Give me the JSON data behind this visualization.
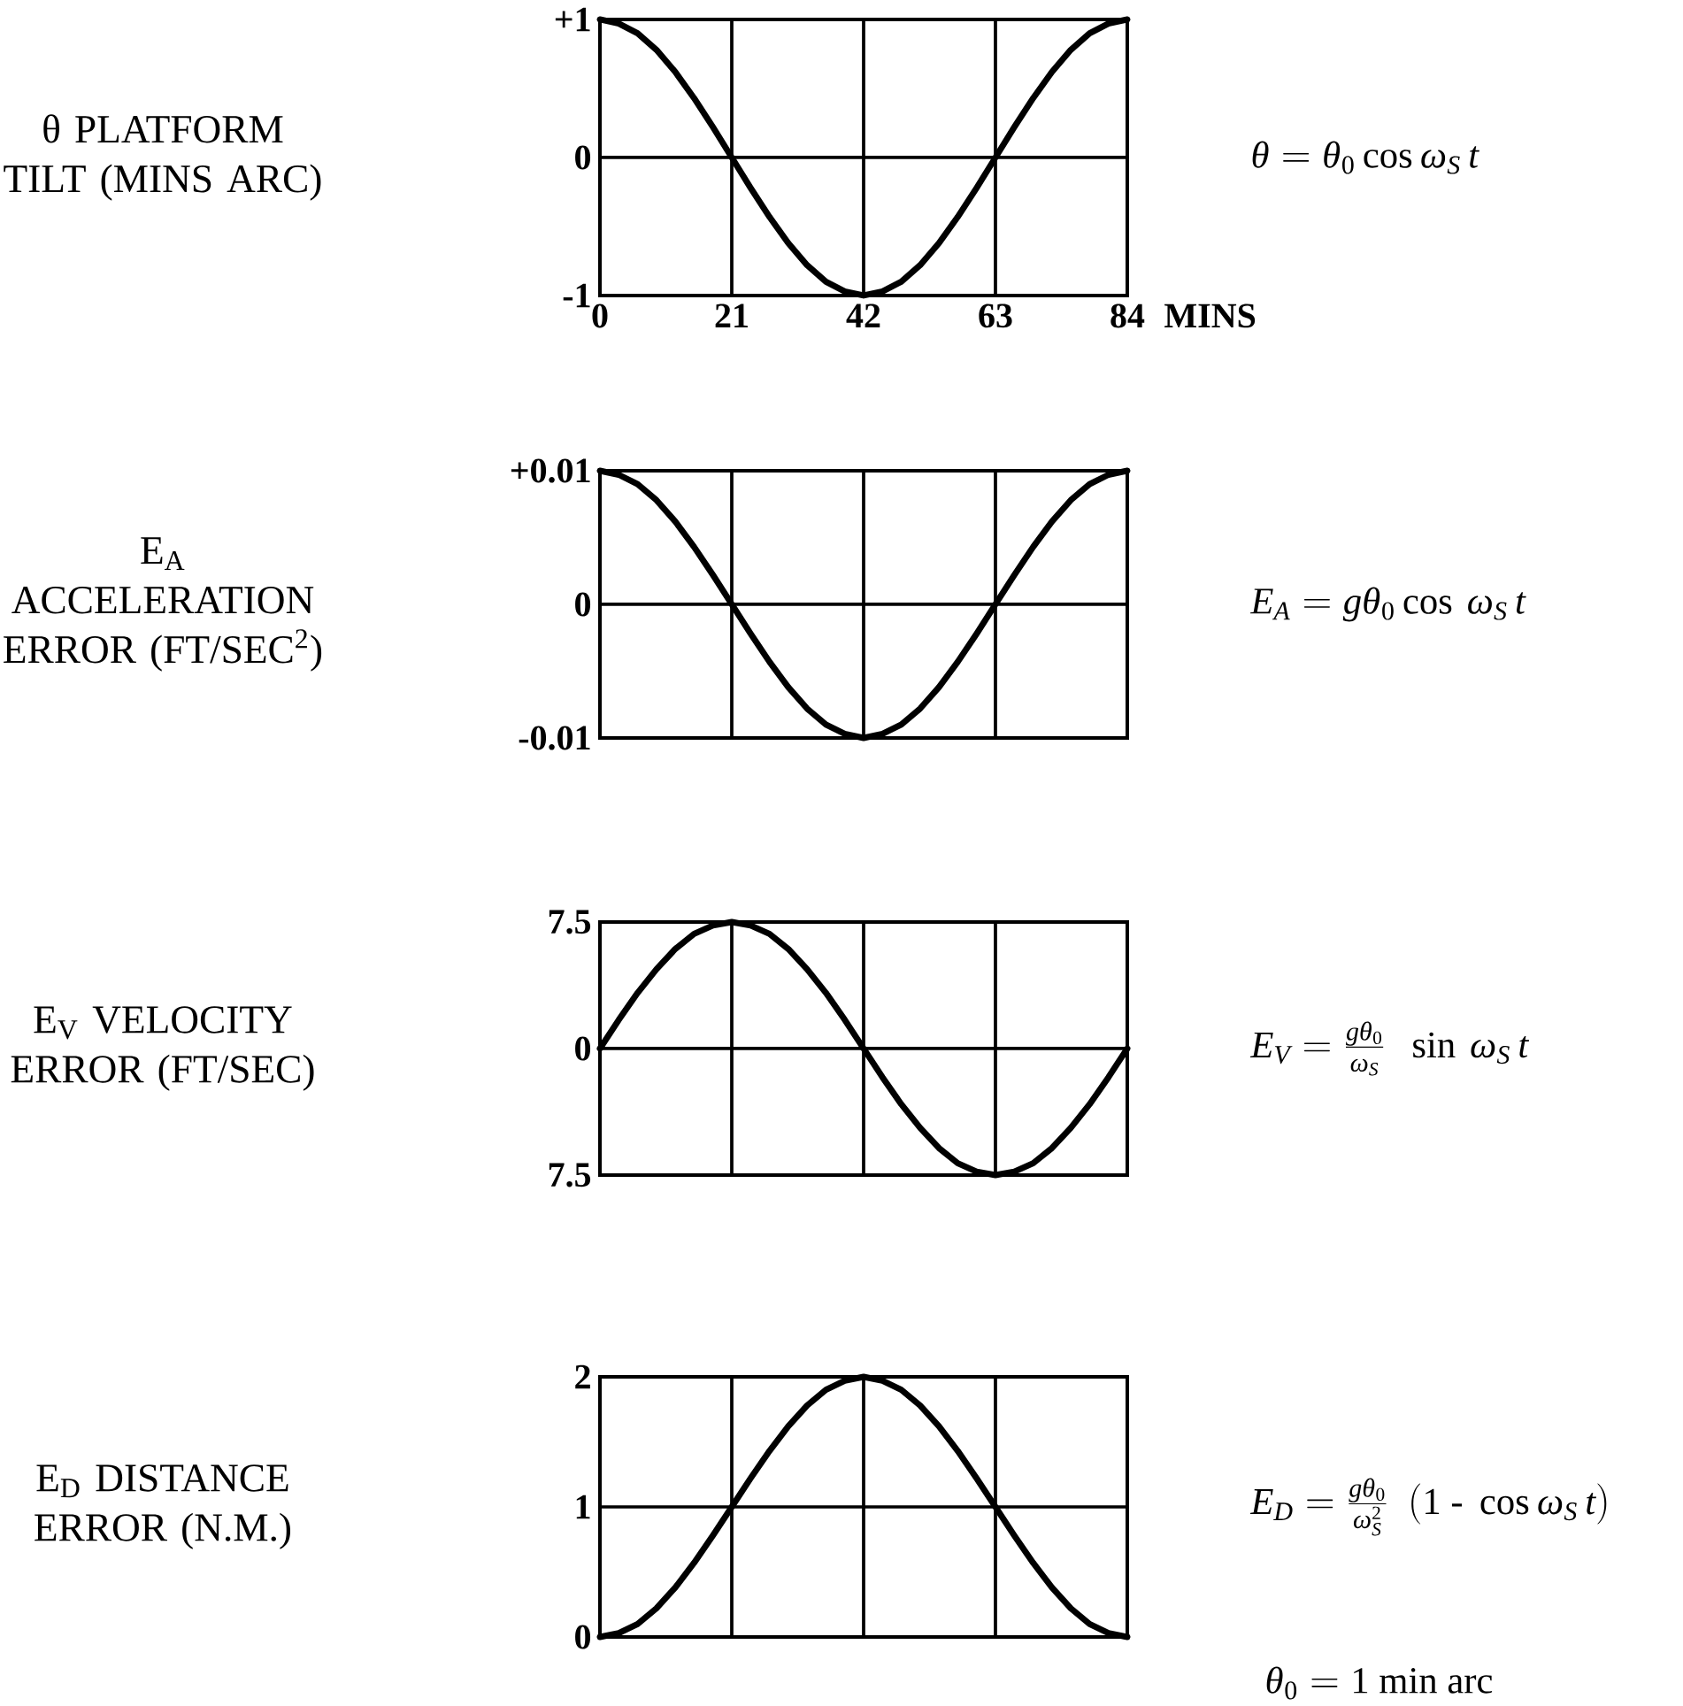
{
  "chart_data": [
    {
      "type": "line",
      "ylabel": "θ PLATFORM TILT (MINS ARC)",
      "xlabel": "MINS",
      "color": "#000000",
      "x": [
        0,
        3,
        6,
        9,
        12,
        15,
        18,
        21,
        24,
        27,
        30,
        33,
        36,
        39,
        42,
        45,
        48,
        51,
        54,
        57,
        60,
        63,
        66,
        69,
        72,
        75,
        78,
        81,
        84
      ],
      "values": [
        1,
        0.97,
        0.9,
        0.78,
        0.62,
        0.43,
        0.22,
        0,
        -0.22,
        -0.43,
        -0.62,
        -0.78,
        -0.9,
        -0.97,
        -1,
        -0.97,
        -0.9,
        -0.78,
        -0.62,
        -0.43,
        -0.22,
        0,
        0.22,
        0.43,
        0.62,
        0.78,
        0.9,
        0.97,
        1
      ],
      "xlim": [
        0,
        84
      ],
      "xticks": [
        0,
        21,
        42,
        63,
        84
      ],
      "ylim": [
        -1,
        1
      ],
      "yticks": [
        -1,
        0,
        {
          "value": 1,
          "label": "+1"
        }
      ],
      "grid": true,
      "annotations": [
        "\\theta = \\theta_{0} \\cos \\omega_{S}\\, t"
      ]
    },
    {
      "type": "line",
      "ylabel": "E$_{A}$ ACCELERATION ERROR (FT/SEC$^{2}$)",
      "color": "#000000",
      "x": [
        0,
        3,
        6,
        9,
        12,
        15,
        18,
        21,
        24,
        27,
        30,
        33,
        36,
        39,
        42,
        45,
        48,
        51,
        54,
        57,
        60,
        63,
        66,
        69,
        72,
        75,
        78,
        81,
        84
      ],
      "values": [
        0.01,
        0.0097,
        0.009,
        0.0078,
        0.0062,
        0.0043,
        0.0022,
        0,
        -0.0022,
        -0.0043,
        -0.0062,
        -0.0078,
        -0.009,
        -0.0097,
        -0.01,
        -0.0097,
        -0.009,
        -0.0078,
        -0.0062,
        -0.0043,
        -0.0022,
        0,
        0.0022,
        0.0043,
        0.0062,
        0.0078,
        0.009,
        0.0097,
        0.01
      ],
      "xlim": [
        0,
        84
      ],
      "xticks": [
        0,
        21,
        42,
        63,
        84
      ],
      "ylim": [
        -0.01,
        0.01
      ],
      "yticks": [
        -0.01,
        0,
        {
          "value": 0.01,
          "label": "+0.01"
        }
      ],
      "grid": true,
      "tick_labels": "y",
      "annotations": [
        "E_{A} = g\\theta_{0} \\cos\\, \\omega_{S}\\, t"
      ]
    },
    {
      "type": "line",
      "ylabel": "E$_{V}$ VELOCITY ERROR (FT/SEC)",
      "color": "#000000",
      "x": [
        0,
        3,
        6,
        9,
        12,
        15,
        18,
        21,
        24,
        27,
        30,
        33,
        36,
        39,
        42,
        45,
        48,
        51,
        54,
        57,
        60,
        63,
        66,
        69,
        72,
        75,
        78,
        81,
        84
      ],
      "values": [
        0,
        1.7,
        3.3,
        4.7,
        5.9,
        6.8,
        7.3,
        7.5,
        7.3,
        6.8,
        5.9,
        4.7,
        3.3,
        1.7,
        0,
        -1.7,
        -3.3,
        -4.7,
        -5.9,
        -6.8,
        -7.3,
        -7.5,
        -7.3,
        -6.8,
        -5.9,
        -4.7,
        -3.3,
        -1.7,
        0
      ],
      "xlim": [
        0,
        84
      ],
      "xticks": [
        0,
        21,
        42,
        63,
        84
      ],
      "ylim": [
        -7.5,
        7.5
      ],
      "yticks": [
        {
          "value": -7.5,
          "label": "7.5"
        },
        0,
        7.5
      ],
      "grid": true,
      "tick_labels": "y",
      "annotations": [
        "E_{V} = \\frac{g\\theta_{0}}{\\omega_{S}}\\ \\ \\sin\\, \\omega_{S}\\, t"
      ]
    },
    {
      "type": "line",
      "ylabel": "E$_{D}$ DISTANCE ERROR (N.M.)",
      "color": "#000000",
      "x": [
        0,
        3,
        6,
        9,
        12,
        15,
        18,
        21,
        24,
        27,
        30,
        33,
        36,
        39,
        42,
        45,
        48,
        51,
        54,
        57,
        60,
        63,
        66,
        69,
        72,
        75,
        78,
        81,
        84
      ],
      "values": [
        0,
        0.03,
        0.1,
        0.22,
        0.38,
        0.57,
        0.78,
        1,
        1.22,
        1.43,
        1.62,
        1.78,
        1.9,
        1.97,
        2,
        1.97,
        1.9,
        1.78,
        1.62,
        1.43,
        1.22,
        1,
        0.78,
        0.57,
        0.38,
        0.22,
        0.1,
        0.03,
        0
      ],
      "xlim": [
        0,
        84
      ],
      "xticks": [
        0,
        21,
        42,
        63,
        84
      ],
      "ylim": [
        0,
        2
      ],
      "yticks": [
        0,
        1,
        2
      ],
      "grid": true,
      "tick_labels": "y",
      "annotations": [
        "E_{D} = \\frac{g\\theta_{0}}{\\omega_{S}^{2}}\\ \\ (1\\ \\mbox{-}\\ \\cos \\omega_{S}\\, t)",
        "\\theta_{0} = 1\\ \\mathrm{min\\ arc}"
      ]
    }
  ]
}
